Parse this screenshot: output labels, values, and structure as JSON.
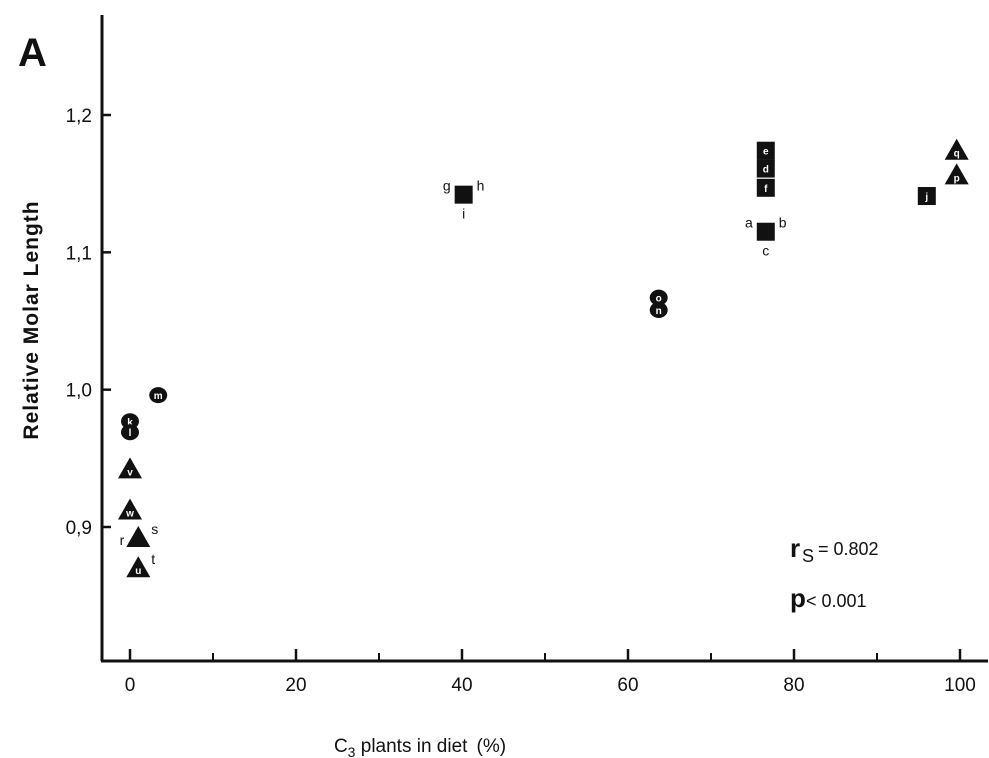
{
  "chart_data": {
    "type": "scatter",
    "panel_label": "A",
    "xlabel": "C₃ plants in diet (%)",
    "ylabel": "Relative Molar Length",
    "xlim": [
      -3,
      103
    ],
    "ylim": [
      0.8,
      1.27
    ],
    "xticks": [
      0,
      20,
      40,
      60,
      80,
      100
    ],
    "xtick_labels": [
      "0",
      "20",
      "40",
      "60",
      "80",
      "100"
    ],
    "xminor": [
      10,
      30,
      50,
      70,
      90
    ],
    "yticks": [
      0.9,
      1.0,
      1.1,
      1.2
    ],
    "ytick_labels": [
      "0,9",
      "1,0",
      "1,1",
      "1,2"
    ],
    "grid": false,
    "stats": {
      "rs_label": "r",
      "rs_sub": "S",
      "rs_value": "= 0.802",
      "p_label": "p",
      "p_value": "< 0.001"
    },
    "points": [
      {
        "x": 40.2,
        "y": 1.142,
        "shape": "square",
        "letter": "",
        "annot": [
          {
            "t": "g",
            "pos": "ul"
          },
          {
            "t": "h",
            "pos": "ur"
          },
          {
            "t": "i",
            "pos": "b"
          }
        ]
      },
      {
        "x": 76.6,
        "y": 1.174,
        "shape": "square",
        "letter": "e"
      },
      {
        "x": 76.6,
        "y": 1.161,
        "shape": "square",
        "letter": "d"
      },
      {
        "x": 76.6,
        "y": 1.147,
        "shape": "square",
        "letter": "f"
      },
      {
        "x": 76.6,
        "y": 1.115,
        "shape": "square",
        "letter": "",
        "annot": [
          {
            "t": "a",
            "pos": "ul"
          },
          {
            "t": "b",
            "pos": "ur"
          },
          {
            "t": "c",
            "pos": "b"
          }
        ]
      },
      {
        "x": 96.0,
        "y": 1.141,
        "shape": "square",
        "letter": "j"
      },
      {
        "x": 63.7,
        "y": 1.067,
        "shape": "circle",
        "letter": "o"
      },
      {
        "x": 63.7,
        "y": 1.058,
        "shape": "circle",
        "letter": "n"
      },
      {
        "x": 3.4,
        "y": 0.996,
        "shape": "circle",
        "letter": "m"
      },
      {
        "x": 0,
        "y": 0.977,
        "shape": "circle",
        "letter": "k"
      },
      {
        "x": 0,
        "y": 0.969,
        "shape": "circle",
        "letter": "l"
      },
      {
        "x": 99.6,
        "y": 1.174,
        "shape": "triangle",
        "letter": "q"
      },
      {
        "x": 99.6,
        "y": 1.156,
        "shape": "triangle",
        "letter": "p"
      },
      {
        "x": 0,
        "y": 0.942,
        "shape": "triangle",
        "letter": "v"
      },
      {
        "x": 0,
        "y": 0.912,
        "shape": "triangle",
        "letter": "w"
      },
      {
        "x": 1,
        "y": 0.892,
        "shape": "triangle",
        "letter": "",
        "annot": [
          {
            "t": "r",
            "pos": "l"
          },
          {
            "t": "s",
            "pos": "ur"
          }
        ]
      },
      {
        "x": 1,
        "y": 0.87,
        "shape": "triangle",
        "letter": "u",
        "annot": [
          {
            "t": "t",
            "pos": "ur"
          }
        ]
      }
    ]
  }
}
